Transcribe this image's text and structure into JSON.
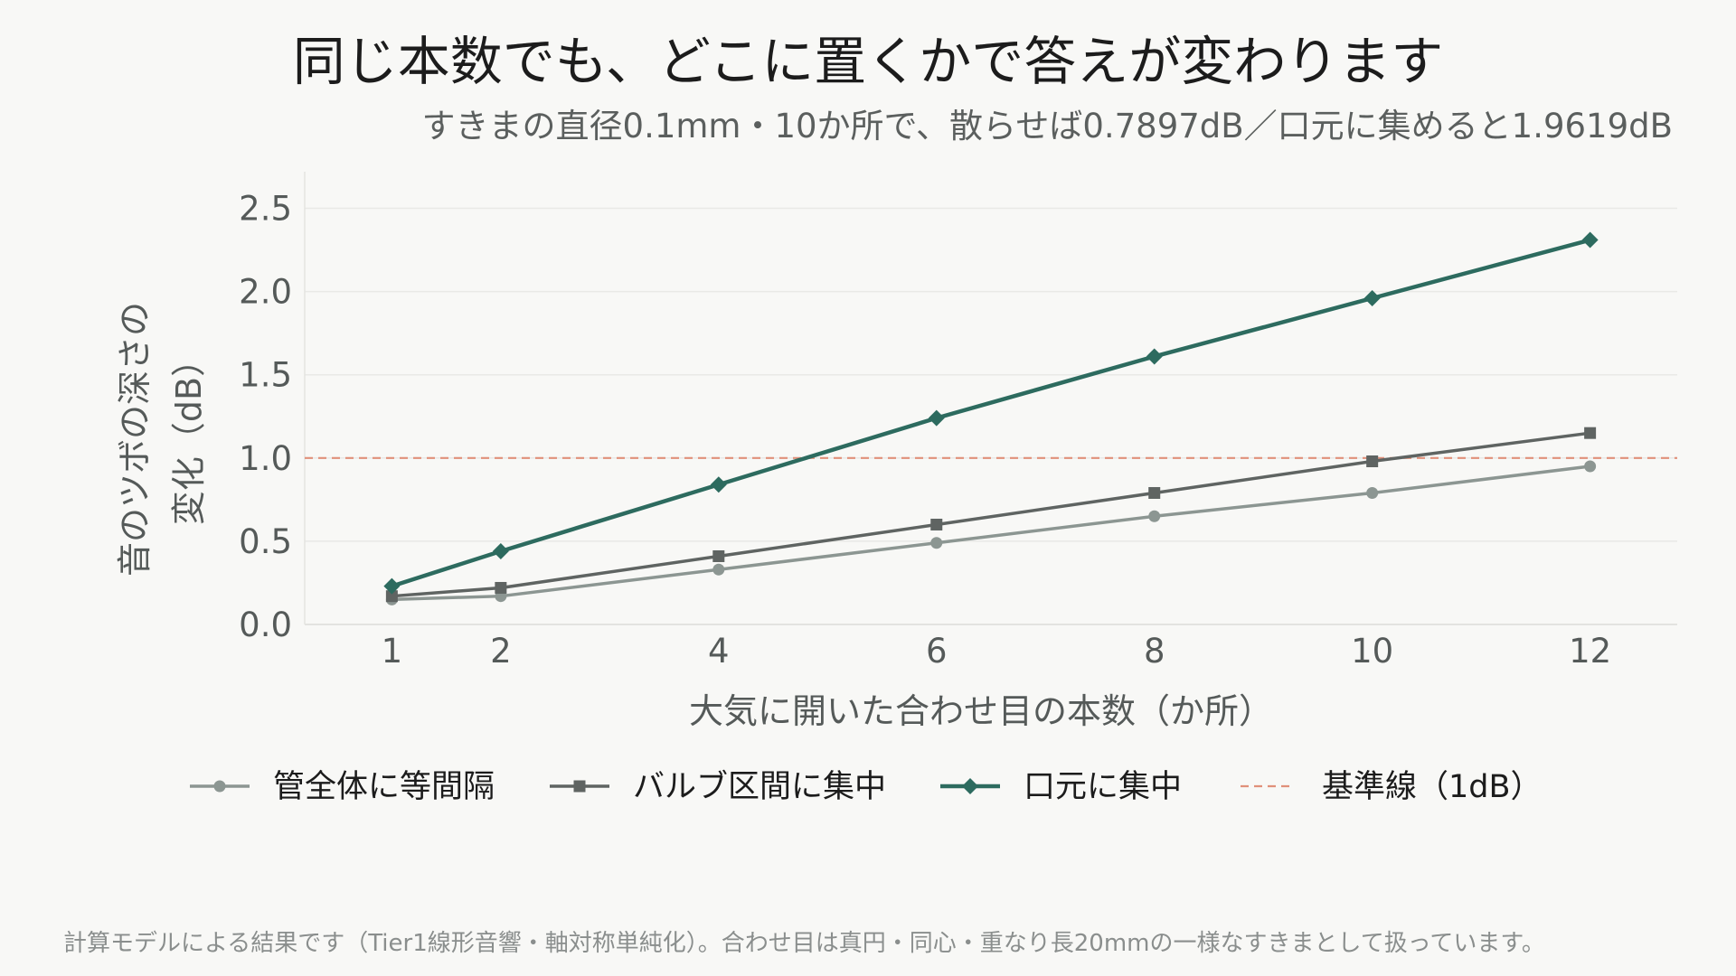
{
  "chart_data": {
    "type": "line",
    "title": "同じ本数でも、どこに置くかで答えが変わります",
    "subtitle": "すきまの直径0.1mm・10か所で、散らせば0.7897dB／口元に集めると1.9619dB",
    "xlabel": "大気に開いた合わせ目の本数（か所）",
    "ylabel_lines": [
      "音のツボの深さの",
      "変化（dB）"
    ],
    "x": [
      1,
      2,
      4,
      6,
      8,
      10,
      12
    ],
    "x_ticks": [
      "1",
      "2",
      "4",
      "6",
      "8",
      "10",
      "12"
    ],
    "xlim": [
      0.2,
      12.8
    ],
    "ylim": [
      0.0,
      2.72
    ],
    "y_ticks": [
      "0.0",
      "0.5",
      "1.0",
      "1.5",
      "2.0",
      "2.5"
    ],
    "grid": "horizontal",
    "legend_position": "bottom",
    "series": [
      {
        "name": "管全体に等間隔",
        "marker": "circle",
        "color": "#8c9692",
        "values": [
          0.15,
          0.17,
          0.33,
          0.49,
          0.65,
          0.79,
          0.95
        ]
      },
      {
        "name": "バルブ区間に集中",
        "marker": "square",
        "color": "#5f6462",
        "values": [
          0.17,
          0.22,
          0.41,
          0.6,
          0.79,
          0.98,
          1.15
        ]
      },
      {
        "name": "口元に集中",
        "marker": "diamond",
        "color": "#2d6b5f",
        "values": [
          0.23,
          0.44,
          0.84,
          1.24,
          1.61,
          1.96,
          2.31
        ]
      }
    ],
    "reference_line": {
      "name": "基準線（1dB）",
      "value": 1.0,
      "color": "#e0907a",
      "style": "dashed"
    },
    "footnote": "計算モデルによる結果です（Tier1線形音響・軸対称単純化）。合わせ目は真円・同心・重なり長20mmの一様なすきまとして扱っています。"
  }
}
